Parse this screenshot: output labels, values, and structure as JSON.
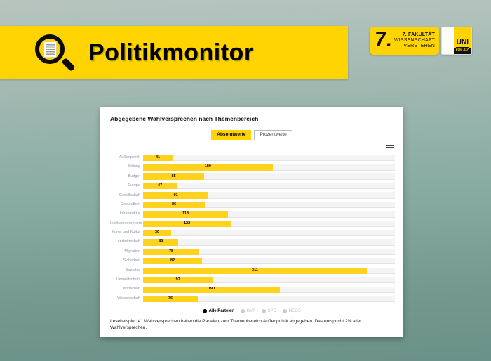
{
  "banner": {
    "title": "Politikmonitor"
  },
  "icons": {
    "header_icon": "magnifier-document-icon",
    "menu_icon": "hamburger-menu-icon",
    "legend_dot_glyph": "●"
  },
  "logos": {
    "fakultaet": {
      "mark": "7.",
      "line1": "7. FAKULTÄT",
      "line2": "WISSENSCHAFT",
      "line3": "VERSTEHEN"
    },
    "unigraz": {
      "top": "UNI",
      "bottom": "GRAZ"
    }
  },
  "card": {
    "title": "Abgegebene Wahlversprechen nach Themenbereich",
    "toggle_absolute": "Absolutwerte",
    "toggle_percent": "Prozentwerte",
    "toggle_selected": "Absolutwerte",
    "legend": [
      {
        "label": "Alle Parteien",
        "active": true
      },
      {
        "label": "ÖVP",
        "active": false
      },
      {
        "label": "SPÖ",
        "active": false
      },
      {
        "label": "NEOS",
        "active": false
      }
    ],
    "footnote": "Lesebeispiel: 41 Wahlversprechen haben die Parteien zum Themenbereich Außenpolitik abgegeben. Das entspricht 2% aller Wahlversprechen."
  },
  "colors": {
    "banner_yellow": "#ffd400",
    "bar_yellow": "#ffd21e",
    "background_top": "#b8c5bf",
    "background_bottom": "#6b9288",
    "label_grey_blue": "#8b99a8",
    "legend_inactive": "#c9c9c9"
  },
  "chart_data": {
    "type": "bar",
    "orientation": "horizontal",
    "title": "Abgegebene Wahlversprechen nach Themenbereich",
    "categories": [
      "Außenpolitik",
      "Bildung",
      "Budget",
      "Europa",
      "Gesellschaft",
      "Gesundheit",
      "Infrastruktur",
      "Institutionenreform",
      "Kunst und Kultur",
      "Landwirtschaft",
      "Migration",
      "Sicherheit",
      "Soziales",
      "Umweltschutz",
      "Wirtschaft",
      "Wissenschaft"
    ],
    "values": [
      41,
      180,
      85,
      47,
      91,
      86,
      118,
      122,
      39,
      49,
      78,
      82,
      311,
      97,
      190,
      76
    ],
    "xlim": [
      0,
      350
    ],
    "value_labels": "inside-bar",
    "grid": false,
    "legend_position": "bottom"
  }
}
